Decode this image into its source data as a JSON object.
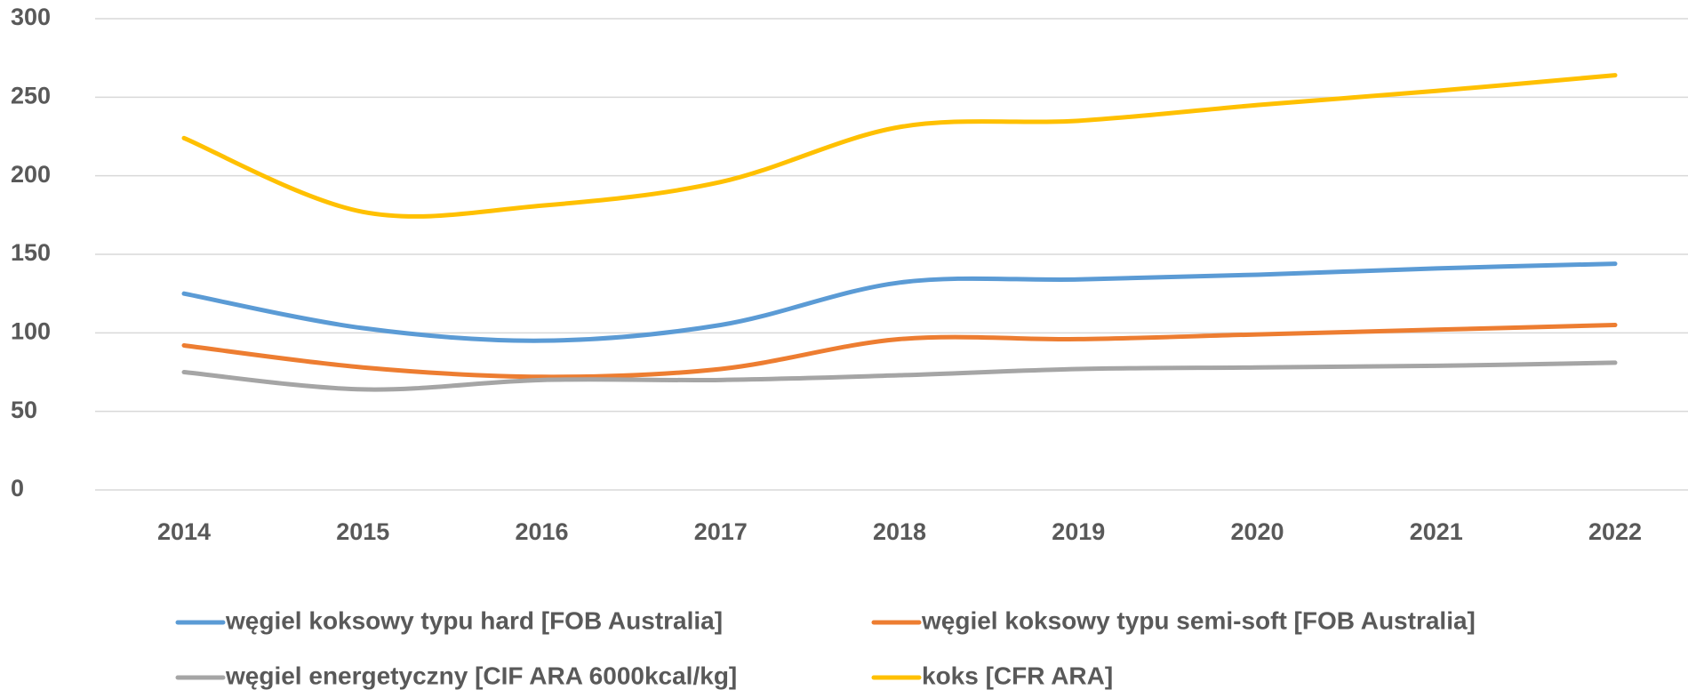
{
  "chart_data": {
    "type": "line",
    "categories": [
      "2014",
      "2015",
      "2016",
      "2017",
      "2018",
      "2019",
      "2020",
      "2021",
      "2022"
    ],
    "series": [
      {
        "name": "węgiel koksowy typu hard [FOB Australia]",
        "color": "#5b9bd5",
        "values": [
          125,
          103,
          95,
          105,
          132,
          134,
          137,
          141,
          144
        ]
      },
      {
        "name": "węgiel koksowy typu semi-soft [FOB Australia]",
        "color": "#ed7d31",
        "values": [
          92,
          78,
          72,
          77,
          96,
          96,
          99,
          102,
          105
        ]
      },
      {
        "name": "węgiel energetyczny [CIF ARA 6000kcal/kg]",
        "color": "#a5a5a5",
        "values": [
          75,
          64,
          70,
          70,
          73,
          77,
          78,
          79,
          81
        ]
      },
      {
        "name": "koks [CFR ARA]",
        "color": "#ffc000",
        "values": [
          224,
          177,
          181,
          196,
          231,
          235,
          245,
          254,
          264
        ]
      }
    ],
    "ylim": [
      0,
      300
    ],
    "yticks": [
      0,
      50,
      100,
      150,
      200,
      250,
      300
    ],
    "grid": true,
    "smooth": true,
    "legend": "bottom"
  }
}
